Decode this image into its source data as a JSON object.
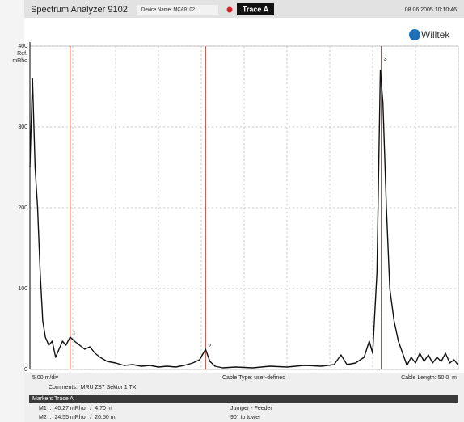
{
  "header": {
    "title": "Spectrum Analyzer 9102",
    "device_name": "Device Name: MCA9102",
    "trace": "Trace A",
    "datetime": "08.06.2005 10:10:46",
    "logo": "Willtek"
  },
  "chart_data": {
    "type": "line",
    "y_label": "mRho",
    "ref_label": "Ref.",
    "x": [
      0,
      0.3,
      0.6,
      0.9,
      1.2,
      1.5,
      1.8,
      2.2,
      2.6,
      3.0,
      3.4,
      3.8,
      4.2,
      4.7,
      5.2,
      5.8,
      6.4,
      7.0,
      7.6,
      8.2,
      9.0,
      10,
      11,
      12,
      13,
      14,
      15,
      16,
      17,
      18,
      19,
      19.8,
      20.5,
      21.0,
      21.6,
      22.5,
      24,
      26,
      28,
      30,
      32,
      34,
      35.5,
      36.3,
      37,
      38,
      39,
      39.6,
      40,
      40.5,
      40.9,
      41.2,
      41.6,
      42,
      42.5,
      43,
      43.5,
      44,
      44.5,
      45,
      45.5,
      46,
      46.5,
      47,
      47.5,
      48,
      48.5,
      49,
      49.5,
      50
    ],
    "values": [
      250,
      360,
      250,
      200,
      120,
      60,
      40,
      30,
      35,
      15,
      25,
      35,
      30,
      40,
      35,
      30,
      25,
      28,
      20,
      15,
      10,
      8,
      5,
      6,
      4,
      5,
      3,
      4,
      3,
      5,
      8,
      12,
      25,
      10,
      4,
      2,
      3,
      2,
      4,
      3,
      5,
      4,
      6,
      18,
      6,
      8,
      15,
      35,
      20,
      120,
      370,
      330,
      200,
      100,
      60,
      35,
      20,
      5,
      15,
      8,
      20,
      10,
      18,
      8,
      15,
      10,
      20,
      8,
      12,
      5
    ],
    "color": "#111111",
    "xlim": [
      0,
      50
    ],
    "xticks": [
      0,
      5,
      10,
      15,
      20,
      25,
      30,
      35,
      40,
      45,
      50
    ],
    "ylim": [
      0,
      400
    ],
    "yticks": [
      0,
      100,
      200,
      300,
      400
    ],
    "grid": true,
    "markers": {
      "x": [
        4.7,
        20.5,
        41.0
      ],
      "values": [
        40.27,
        24.55,
        380
      ],
      "labels": [
        "1",
        "2",
        "3"
      ],
      "color": "#c0392b"
    }
  },
  "footer": {
    "scale": "5.00 m/div",
    "cable_type": "Cable Type: user-defined",
    "cable_length": "Cable Length: 50.0  m",
    "comments": "Comments:  MRU Z87 Sektor 1 TX",
    "markers_title": "Markers Trace A",
    "rows": [
      [
        "M1  :  40.27 mRho   /  4.70 m",
        "Jumper - Feeder"
      ],
      [
        "M2  :  24.55 mRho   /  20.50 m",
        "90° to tower"
      ]
    ]
  }
}
